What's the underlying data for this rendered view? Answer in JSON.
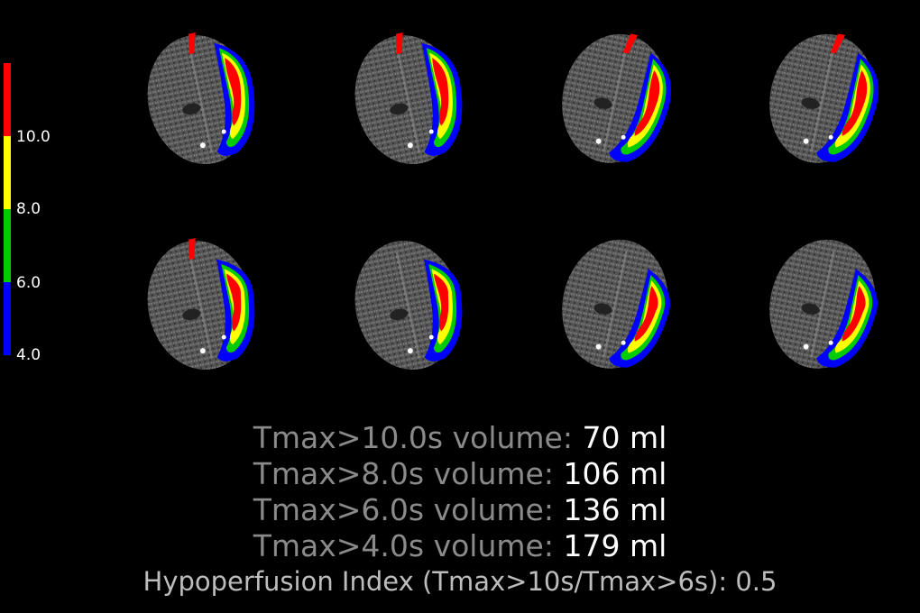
{
  "colorbar": {
    "segments": [
      {
        "color": "#ff0000",
        "from": 10.0,
        "to": 12.0
      },
      {
        "color": "#ffff00",
        "from": 8.0,
        "to": 10.0
      },
      {
        "color": "#00cc00",
        "from": 6.0,
        "to": 8.0
      },
      {
        "color": "#0000ff",
        "from": 4.0,
        "to": 6.0
      }
    ],
    "tick_labels": [
      "10.0",
      "8.0",
      "6.0",
      "4.0"
    ]
  },
  "slices": {
    "count": 8,
    "rows": 2,
    "columns": 4
  },
  "volumes": [
    {
      "label": "Tmax>10.0s volume:",
      "value": "70 ml"
    },
    {
      "label": "Tmax>8.0s volume:",
      "value": "106 ml"
    },
    {
      "label": "Tmax>6.0s volume:",
      "value": "136 ml"
    },
    {
      "label": "Tmax>4.0s volume:",
      "value": "179 ml"
    }
  ],
  "hypoperfusion_index": "Hypoperfusion Index (Tmax>10s/Tmax>6s): 0.5"
}
